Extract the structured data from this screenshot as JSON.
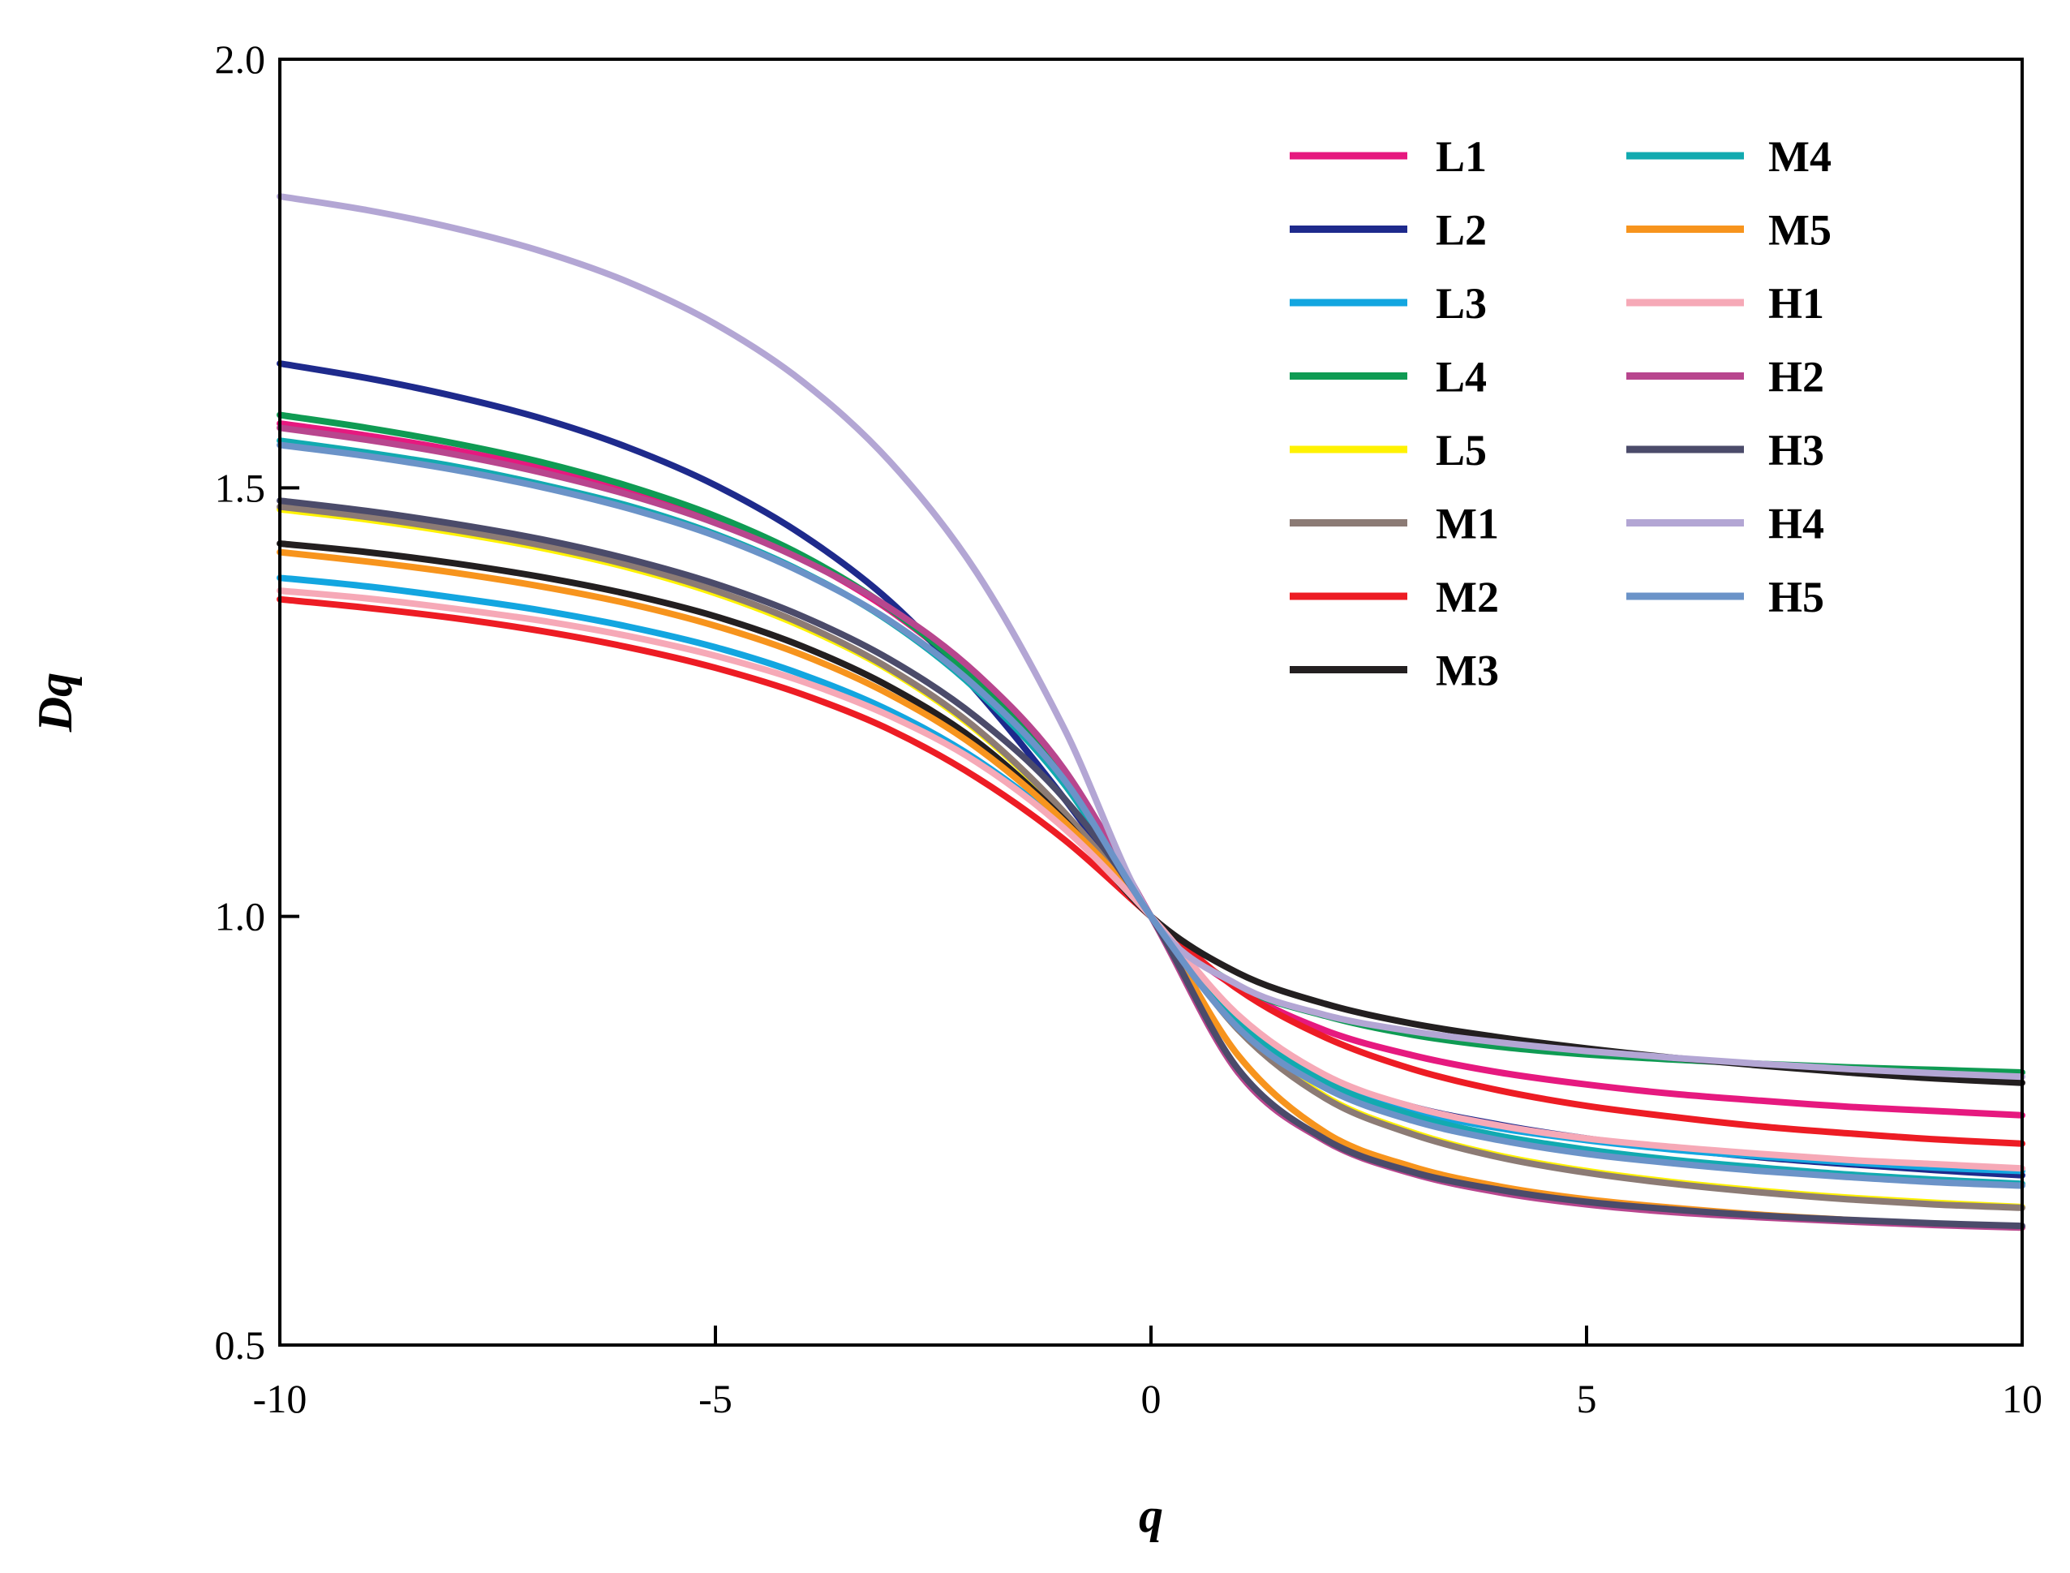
{
  "chart_data": {
    "type": "line",
    "title": "",
    "xlabel": "q",
    "ylabel": "Dq",
    "xlim": [
      -10,
      10
    ],
    "ylim": [
      0.5,
      2.0
    ],
    "xticks": [
      -10,
      -5,
      0,
      5,
      10
    ],
    "yticks": [
      0.5,
      1.0,
      1.5,
      2.0
    ],
    "xtick_labels": [
      "-10",
      "-5",
      "0",
      "5",
      "10"
    ],
    "ytick_labels": [
      "0.5",
      "1.0",
      "1.5",
      "2.0"
    ],
    "grid": false,
    "legend_position": "top-right",
    "x": [
      -10,
      -9,
      -8,
      -7,
      -6,
      -5,
      -4,
      -3,
      -2,
      -1,
      0,
      1,
      2,
      3,
      4,
      5,
      6,
      7,
      8,
      9,
      10
    ],
    "series": [
      {
        "name": "L1",
        "color": "#e6197f",
        "values": [
          1.575,
          1.561,
          1.544,
          1.523,
          1.496,
          1.462,
          1.417,
          1.357,
          1.275,
          1.163,
          1.0,
          0.916,
          0.867,
          0.838,
          0.818,
          0.804,
          0.793,
          0.785,
          0.778,
          0.773,
          0.768
        ]
      },
      {
        "name": "L2",
        "color": "#1e2a8c",
        "values": [
          1.645,
          1.628,
          1.607,
          1.581,
          1.547,
          1.503,
          1.445,
          1.368,
          1.263,
          1.138,
          1.0,
          0.876,
          0.812,
          0.778,
          0.757,
          0.741,
          0.729,
          0.719,
          0.711,
          0.704,
          0.698
        ]
      },
      {
        "name": "L3",
        "color": "#13a6e0",
        "values": [
          1.395,
          1.385,
          1.372,
          1.357,
          1.338,
          1.314,
          1.282,
          1.24,
          1.183,
          1.105,
          1.0,
          0.88,
          0.81,
          0.774,
          0.753,
          0.739,
          0.728,
          0.72,
          0.713,
          0.707,
          0.703
        ]
      },
      {
        "name": "L4",
        "color": "#0f9b53",
        "values": [
          1.585,
          1.57,
          1.552,
          1.53,
          1.502,
          1.467,
          1.421,
          1.359,
          1.275,
          1.16,
          1.0,
          0.919,
          0.884,
          0.862,
          0.848,
          0.839,
          0.833,
          0.828,
          0.824,
          0.821,
          0.818
        ]
      },
      {
        "name": "L5",
        "color": "#fff200",
        "values": [
          1.475,
          1.463,
          1.448,
          1.43,
          1.407,
          1.377,
          1.338,
          1.287,
          1.217,
          1.121,
          1.0,
          0.87,
          0.79,
          0.748,
          0.721,
          0.703,
          0.69,
          0.68,
          0.672,
          0.666,
          0.661
        ]
      },
      {
        "name": "M1",
        "color": "#8c7b75",
        "values": [
          1.478,
          1.466,
          1.451,
          1.433,
          1.41,
          1.38,
          1.341,
          1.289,
          1.219,
          1.122,
          1.0,
          0.868,
          0.788,
          0.746,
          0.719,
          0.701,
          0.688,
          0.678,
          0.67,
          0.664,
          0.66
        ]
      },
      {
        "name": "M2",
        "color": "#ed1c24",
        "values": [
          1.37,
          1.36,
          1.348,
          1.333,
          1.314,
          1.29,
          1.259,
          1.218,
          1.162,
          1.09,
          1.0,
          0.915,
          0.859,
          0.822,
          0.797,
          0.779,
          0.766,
          0.755,
          0.747,
          0.74,
          0.735
        ]
      },
      {
        "name": "M3",
        "color": "#231f20",
        "values": [
          1.435,
          1.425,
          1.412,
          1.396,
          1.376,
          1.35,
          1.315,
          1.268,
          1.204,
          1.113,
          1.0,
          0.934,
          0.898,
          0.875,
          0.859,
          0.846,
          0.835,
          0.826,
          0.818,
          0.811,
          0.806
        ]
      },
      {
        "name": "M4",
        "color": "#12aab0",
        "values": [
          1.555,
          1.541,
          1.525,
          1.504,
          1.479,
          1.446,
          1.402,
          1.344,
          1.264,
          1.155,
          1.0,
          0.877,
          0.807,
          0.768,
          0.744,
          0.728,
          0.716,
          0.707,
          0.699,
          0.693,
          0.688
        ]
      },
      {
        "name": "M5",
        "color": "#f7941d",
        "values": [
          1.425,
          1.414,
          1.401,
          1.385,
          1.365,
          1.339,
          1.305,
          1.259,
          1.197,
          1.111,
          1.0,
          0.838,
          0.748,
          0.708,
          0.685,
          0.67,
          0.66,
          0.652,
          0.646,
          0.641,
          0.637
        ]
      },
      {
        "name": "H1",
        "color": "#f6a9b7",
        "values": [
          1.38,
          1.371,
          1.359,
          1.345,
          1.327,
          1.304,
          1.274,
          1.234,
          1.18,
          1.103,
          1.0,
          0.885,
          0.815,
          0.778,
          0.756,
          0.741,
          0.731,
          0.723,
          0.716,
          0.711,
          0.706
        ]
      },
      {
        "name": "H2",
        "color": "#b8468e",
        "values": [
          1.57,
          1.556,
          1.539,
          1.518,
          1.492,
          1.459,
          1.416,
          1.36,
          1.283,
          1.172,
          1.0,
          0.818,
          0.738,
          0.7,
          0.678,
          0.664,
          0.655,
          0.649,
          0.644,
          0.64,
          0.637
        ]
      },
      {
        "name": "H3",
        "color": "#4b4b6a",
        "values": [
          1.485,
          1.473,
          1.458,
          1.44,
          1.417,
          1.388,
          1.35,
          1.3,
          1.232,
          1.138,
          1.0,
          0.822,
          0.74,
          0.702,
          0.681,
          0.667,
          0.658,
          0.651,
          0.646,
          0.642,
          0.639
        ]
      },
      {
        "name": "H4",
        "color": "#b3a6d4",
        "values": [
          1.84,
          1.824,
          1.803,
          1.776,
          1.74,
          1.691,
          1.624,
          1.531,
          1.401,
          1.22,
          1.0,
          0.92,
          0.885,
          0.866,
          0.853,
          0.843,
          0.835,
          0.828,
          0.822,
          0.817,
          0.813
        ]
      },
      {
        "name": "H5",
        "color": "#6b93c8",
        "values": [
          1.55,
          1.537,
          1.521,
          1.501,
          1.476,
          1.444,
          1.401,
          1.345,
          1.267,
          1.16,
          1.0,
          0.87,
          0.8,
          0.762,
          0.739,
          0.723,
          0.712,
          0.703,
          0.696,
          0.69,
          0.686
        ]
      }
    ]
  }
}
